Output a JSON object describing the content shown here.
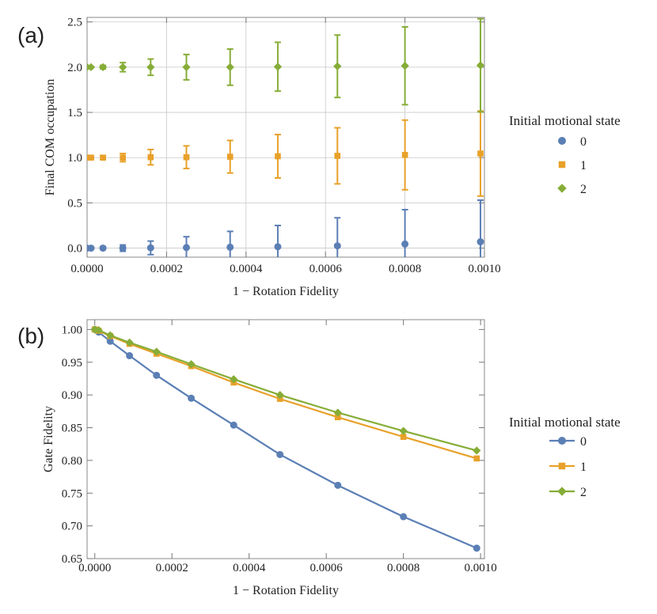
{
  "figure": {
    "panel_a_label": "(a)",
    "panel_b_label": "(b)"
  },
  "chart_data": [
    {
      "type": "scatter",
      "panel": "(a)",
      "xlabel": "1 − Rotation Fidelity",
      "ylabel": "Final COM occupation",
      "xlim": [
        0,
        0.001
      ],
      "ylim": [
        -0.1,
        2.55
      ],
      "xticks": [
        0,
        0.0002,
        0.0004,
        0.0006,
        0.0008,
        0.001
      ],
      "xtick_labels": [
        "0.0000",
        "0.0002",
        "0.0004",
        "0.0006",
        "0.0008",
        "0.0010"
      ],
      "yticks": [
        0,
        0.5,
        1,
        1.5,
        2,
        2.5
      ],
      "ytick_labels": [
        "0.0",
        "0.5",
        "1.0",
        "1.5",
        "2.0",
        "2.5"
      ],
      "grid": true,
      "legend_title": "Initial motional state",
      "legend_position": "right",
      "x": [
        0.0,
        1e-05,
        4e-05,
        9e-05,
        0.00016,
        0.00025,
        0.00036,
        0.00048,
        0.00063,
        0.0008,
        0.00099
      ],
      "series": [
        {
          "name": "0",
          "color": "#5b7fb5",
          "marker": "circle",
          "values": [
            0.0,
            0.0,
            0.0,
            0.0,
            0.003,
            0.006,
            0.01,
            0.015,
            0.025,
            0.045,
            0.07
          ],
          "errors": [
            0.0,
            0.005,
            0.015,
            0.035,
            0.075,
            0.12,
            0.175,
            0.235,
            0.31,
            0.38,
            0.46
          ]
        },
        {
          "name": "1",
          "color": "#e8a12a",
          "marker": "square",
          "values": [
            1.0,
            1.0,
            1.0,
            1.0,
            1.005,
            1.005,
            1.01,
            1.015,
            1.02,
            1.03,
            1.045
          ],
          "errors": [
            0.0,
            0.005,
            0.02,
            0.045,
            0.085,
            0.125,
            0.18,
            0.24,
            0.31,
            0.385,
            0.47
          ]
        },
        {
          "name": "2",
          "color": "#86ad37",
          "marker": "diamond",
          "values": [
            2.0,
            2.0,
            2.0,
            2.0,
            2.0,
            2.0,
            2.0,
            2.005,
            2.01,
            2.015,
            2.02
          ],
          "errors": [
            0.0,
            0.005,
            0.02,
            0.05,
            0.09,
            0.14,
            0.2,
            0.27,
            0.345,
            0.43,
            0.515
          ]
        }
      ]
    },
    {
      "type": "line",
      "panel": "(b)",
      "xlabel": "1 − Rotation Fidelity",
      "ylabel": "Gate Fidelity",
      "xlim": [
        -2e-05,
        0.00101
      ],
      "ylim": [
        0.65,
        1.015
      ],
      "xticks": [
        0,
        0.0002,
        0.0004,
        0.0006,
        0.0008,
        0.001
      ],
      "xtick_labels": [
        "0.0000",
        "0.0002",
        "0.0004",
        "0.0006",
        "0.0008",
        "0.0010"
      ],
      "yticks": [
        0.65,
        0.7,
        0.75,
        0.8,
        0.85,
        0.9,
        0.95,
        1.0
      ],
      "ytick_labels": [
        "0.65",
        "0.70",
        "0.75",
        "0.80",
        "0.85",
        "0.90",
        "0.95",
        "1.00"
      ],
      "grid": false,
      "legend_title": "Initial motional state",
      "legend_position": "right",
      "x": [
        0.0,
        1e-05,
        4e-05,
        9e-05,
        0.00016,
        0.00025,
        0.00036,
        0.00048,
        0.00063,
        0.0008,
        0.00099
      ],
      "series": [
        {
          "name": "0",
          "color": "#5b7fb5",
          "marker": "circle",
          "values": [
            1.0,
            0.996,
            0.982,
            0.96,
            0.93,
            0.895,
            0.854,
            0.809,
            0.762,
            0.714,
            0.666
          ]
        },
        {
          "name": "1",
          "color": "#e8a12a",
          "marker": "square",
          "values": [
            1.0,
            0.998,
            0.99,
            0.978,
            0.963,
            0.944,
            0.919,
            0.894,
            0.866,
            0.836,
            0.803
          ]
        },
        {
          "name": "2",
          "color": "#86ad37",
          "marker": "diamond",
          "values": [
            1.0,
            0.999,
            0.991,
            0.98,
            0.966,
            0.947,
            0.924,
            0.9,
            0.873,
            0.845,
            0.815
          ]
        }
      ]
    }
  ]
}
